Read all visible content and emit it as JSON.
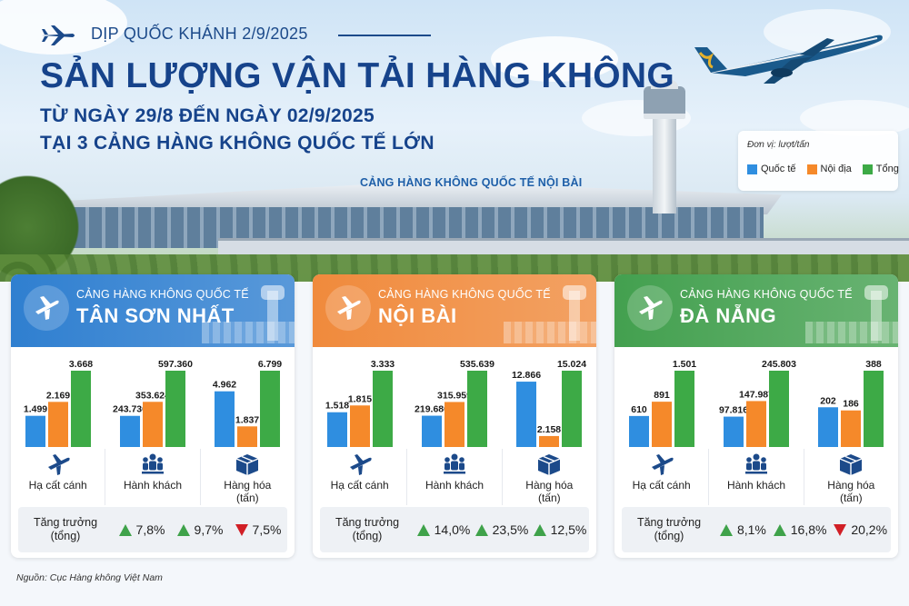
{
  "header": {
    "eyebrow": "DỊP QUỐC KHÁNH 2/9/2025",
    "title": "SẢN LƯỢNG VẬN TẢI HÀNG KHÔNG",
    "subtitle_1": "TỪ NGÀY 29/8  ĐẾN NGÀY 02/9/2025",
    "subtitle_2": "TẠI 3 CẢNG HÀNG KHÔNG QUỐC TẾ LỚN",
    "photo_sign": "CẢNG HÀNG KHÔNG QUỐC TẾ NỘI BÀI"
  },
  "legend": {
    "unit": "Đơn vị: lượt/tấn",
    "items": [
      {
        "label": "Quốc tế",
        "color": "#2f8ee0"
      },
      {
        "label": "Nội địa",
        "color": "#f5892a"
      },
      {
        "label": "Tổng",
        "color": "#3daa46"
      }
    ]
  },
  "categories": [
    "Hạ cất cánh",
    "Hành khách",
    "Hàng hóa\n(tấn)"
  ],
  "category_icons": [
    "plane-icon",
    "passengers-icon",
    "cargo-box-icon"
  ],
  "growth_label": "Tăng trưởng\n(tổng)",
  "source": "Nguồn: Cục Hàng không Việt Nam",
  "chart_data": [
    {
      "type": "bar",
      "prefix": "CẢNG HÀNG KHÔNG QUỐC TẾ",
      "airport": "TÂN SƠN NHẤT",
      "header_color": "#2f7fd0",
      "categories": [
        "Hạ cất cánh",
        "Hành khách",
        "Hàng hóa (tấn)"
      ],
      "series": [
        {
          "name": "Quốc tế",
          "values": [
            1499,
            243736,
            4962
          ]
        },
        {
          "name": "Nội địa",
          "values": [
            2169,
            353624,
            1837
          ]
        },
        {
          "name": "Tổng",
          "values": [
            3668,
            597360,
            6799
          ]
        }
      ],
      "labels": [
        [
          "1.499",
          "2.169",
          "3.668"
        ],
        [
          "243.736",
          "353.624",
          "597.360"
        ],
        [
          "4.962",
          "1.837",
          "6.799"
        ]
      ],
      "growth": [
        {
          "dir": "up",
          "value": "7,8%"
        },
        {
          "dir": "up",
          "value": "9,7%"
        },
        {
          "dir": "down",
          "value": "7,5%"
        }
      ]
    },
    {
      "type": "bar",
      "prefix": "CẢNG HÀNG KHÔNG QUỐC TẾ",
      "airport": "NỘI BÀI",
      "header_color": "#f08a3c",
      "categories": [
        "Hạ cất cánh",
        "Hành khách",
        "Hàng hóa (tấn)"
      ],
      "series": [
        {
          "name": "Quốc tế",
          "values": [
            1518,
            219680,
            12866
          ]
        },
        {
          "name": "Nội địa",
          "values": [
            1815,
            315959,
            2158
          ]
        },
        {
          "name": "Tổng",
          "values": [
            3333,
            535639,
            15024
          ]
        }
      ],
      "labels": [
        [
          "1.518",
          "1.815",
          "3.333"
        ],
        [
          "219.680",
          "315.959",
          "535.639"
        ],
        [
          "12.866",
          "2.158",
          "15.024"
        ]
      ],
      "growth": [
        {
          "dir": "up",
          "value": "14,0%"
        },
        {
          "dir": "up",
          "value": "23,5%"
        },
        {
          "dir": "up",
          "value": "12,5%"
        }
      ]
    },
    {
      "type": "bar",
      "prefix": "CẢNG HÀNG KHÔNG QUỐC TẾ",
      "airport": "ĐÀ NẴNG",
      "header_color": "#43a04f",
      "categories": [
        "Hạ cất cánh",
        "Hành khách",
        "Hàng hóa (tấn)"
      ],
      "series": [
        {
          "name": "Quốc tế",
          "values": [
            610,
            97816,
            202
          ]
        },
        {
          "name": "Nội địa",
          "values": [
            891,
            147987,
            186
          ]
        },
        {
          "name": "Tổng",
          "values": [
            1501,
            245803,
            388
          ]
        }
      ],
      "labels": [
        [
          "610",
          "891",
          "1.501"
        ],
        [
          "97.816",
          "147.987",
          "245.803"
        ],
        [
          "202",
          "186",
          "388"
        ]
      ],
      "growth": [
        {
          "dir": "up",
          "value": "8,1%"
        },
        {
          "dir": "up",
          "value": "16,8%"
        },
        {
          "dir": "down",
          "value": "20,2%"
        }
      ]
    }
  ]
}
